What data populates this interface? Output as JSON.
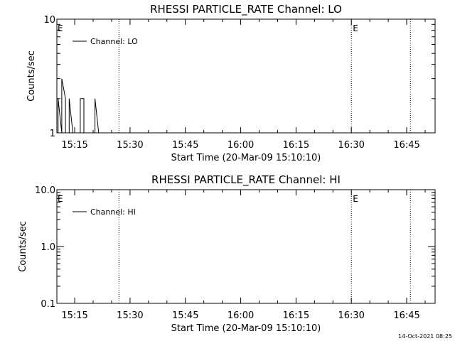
{
  "footer": {
    "timestamp": "14-Oct-2021 08:25"
  },
  "chart_data": [
    {
      "type": "line",
      "title": "RHESSI PARTICLE_RATE Channel: LO",
      "xlabel": "Start Time (20-Mar-09 15:10:10)",
      "ylabel": "Counts/sec",
      "x_tick_labels": [
        "15:15",
        "15:30",
        "15:45",
        "16:00",
        "16:15",
        "16:30",
        "16:45"
      ],
      "y_tick_labels": [
        "1",
        "10"
      ],
      "y_scale": "log",
      "ylim": [
        1,
        10
      ],
      "legend": {
        "position": "top-left",
        "label": "Channel: LO"
      },
      "markers": [
        {
          "time": "15:27",
          "label": ""
        },
        {
          "time": "16:30",
          "label": "E"
        },
        {
          "time": "16:46",
          "label": ""
        }
      ],
      "start_label": "E",
      "series": [
        {
          "name": "Channel: LO",
          "points": [
            [
              "15:10",
              1
            ],
            [
              "15:10",
              2
            ],
            [
              "15:11",
              1
            ],
            [
              "15:11",
              3
            ],
            [
              "15:12",
              2
            ],
            [
              "15:12",
              1
            ],
            [
              "15:13",
              1
            ],
            [
              "15:13",
              2
            ],
            [
              "15:14",
              1
            ],
            [
              "15:14",
              1
            ],
            [
              "15:16",
              1
            ],
            [
              "15:16",
              2
            ],
            [
              "15:17",
              2
            ],
            [
              "15:17",
              1
            ],
            [
              "15:18",
              1
            ],
            [
              "15:18",
              1
            ],
            [
              "15:20",
              1
            ],
            [
              "15:20",
              2
            ],
            [
              "15:21",
              1
            ]
          ]
        }
      ]
    },
    {
      "type": "line",
      "title": "RHESSI PARTICLE_RATE Channel: HI",
      "xlabel": "Start Time (20-Mar-09 15:10:10)",
      "ylabel": "Counts/sec",
      "x_tick_labels": [
        "15:15",
        "15:30",
        "15:45",
        "16:00",
        "16:15",
        "16:30",
        "16:45"
      ],
      "y_tick_labels": [
        "0.1",
        "1.0",
        "10.0"
      ],
      "y_scale": "log",
      "ylim": [
        0.1,
        10
      ],
      "legend": {
        "position": "top-left",
        "label": "Channel: HI"
      },
      "markers": [
        {
          "time": "15:27",
          "label": ""
        },
        {
          "time": "16:30",
          "label": "E"
        },
        {
          "time": "16:46",
          "label": ""
        }
      ],
      "start_label": "E",
      "series": [
        {
          "name": "Channel: HI",
          "points": []
        }
      ]
    }
  ]
}
